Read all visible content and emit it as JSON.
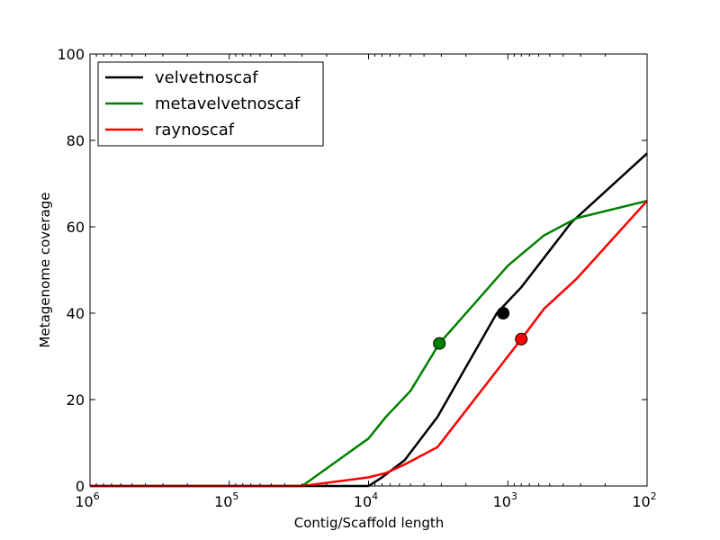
{
  "chart_data": {
    "type": "line",
    "xlabel": "Contig/Scaffold length",
    "ylabel": "Metagenome coverage",
    "x_scale": "log",
    "x_reversed": true,
    "xlim": [
      1000000,
      100
    ],
    "ylim": [
      0,
      100
    ],
    "x_ticks": [
      {
        "value": 1000000,
        "base": "10",
        "exp": "6"
      },
      {
        "value": 100000,
        "base": "10",
        "exp": "5"
      },
      {
        "value": 10000,
        "base": "10",
        "exp": "4"
      },
      {
        "value": 1000,
        "base": "10",
        "exp": "3"
      },
      {
        "value": 100,
        "base": "10",
        "exp": "2"
      }
    ],
    "y_ticks": [
      {
        "value": 0,
        "label": "0"
      },
      {
        "value": 20,
        "label": "20"
      },
      {
        "value": 40,
        "label": "40"
      },
      {
        "value": 60,
        "label": "60"
      },
      {
        "value": 80,
        "label": "80"
      },
      {
        "value": 100,
        "label": "100"
      }
    ],
    "legend_position": "top-left",
    "series": [
      {
        "name": "velvetnoscaf",
        "color": "#000000",
        "x": [
          1000000,
          100000,
          30000,
          10000,
          8000,
          5500,
          3200,
          1200,
          800,
          350,
          100
        ],
        "y": [
          0,
          0,
          0,
          0,
          2,
          6,
          16,
          40,
          46,
          61,
          77
        ],
        "marker": {
          "x": 1080,
          "y": 40
        }
      },
      {
        "name": "metavelvetnoscaf",
        "color": "#008000",
        "x": [
          1000000,
          100000,
          30000,
          10000,
          7500,
          5000,
          3100,
          1000,
          550,
          320,
          100
        ],
        "y": [
          0,
          0,
          0,
          11,
          16,
          22,
          33,
          51,
          58,
          62,
          66
        ],
        "marker": {
          "x": 3100,
          "y": 33
        }
      },
      {
        "name": "raynoscaf",
        "color": "#ff0000",
        "x": [
          1000000,
          100000,
          30000,
          10000,
          7500,
          5500,
          3200,
          800,
          550,
          320,
          100
        ],
        "y": [
          0,
          0,
          0,
          2,
          3,
          5,
          9,
          34,
          41,
          48,
          66
        ],
        "marker": {
          "x": 800,
          "y": 34
        }
      }
    ]
  }
}
